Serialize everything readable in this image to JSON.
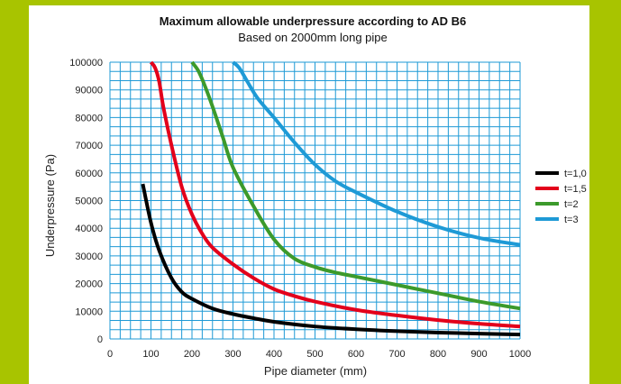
{
  "chart_data": {
    "type": "line",
    "title": "Maximum allowable underpressure according to AD B6",
    "subtitle": "Based on 2000mm long pipe",
    "xlabel": "Pipe diameter (mm)",
    "ylabel": "Underpressure (Pa)",
    "xlim": [
      0,
      1000
    ],
    "ylim": [
      0,
      100000
    ],
    "x_ticks": [
      0,
      100,
      200,
      300,
      400,
      500,
      600,
      700,
      800,
      900,
      1000
    ],
    "y_ticks": [
      0,
      10000,
      20000,
      30000,
      40000,
      50000,
      60000,
      70000,
      80000,
      90000,
      100000
    ],
    "grid": true,
    "grid_color": "#1e9ad6",
    "legend_position": "right",
    "series": [
      {
        "name": "t=1,0",
        "color": "#000000",
        "points": [
          [
            80,
            56000
          ],
          [
            100,
            42000
          ],
          [
            120,
            32000
          ],
          [
            150,
            22000
          ],
          [
            175,
            17000
          ],
          [
            200,
            14500
          ],
          [
            250,
            11000
          ],
          [
            300,
            9000
          ],
          [
            350,
            7500
          ],
          [
            400,
            6200
          ],
          [
            500,
            4500
          ],
          [
            600,
            3500
          ],
          [
            700,
            2800
          ],
          [
            800,
            2300
          ],
          [
            900,
            1900
          ],
          [
            1000,
            1600
          ]
        ]
      },
      {
        "name": "t=1,5",
        "color": "#e3001b",
        "points": [
          [
            100,
            100000
          ],
          [
            110,
            98000
          ],
          [
            120,
            93000
          ],
          [
            130,
            84000
          ],
          [
            150,
            70000
          ],
          [
            175,
            55000
          ],
          [
            200,
            45000
          ],
          [
            225,
            38000
          ],
          [
            250,
            33000
          ],
          [
            300,
            27000
          ],
          [
            350,
            22000
          ],
          [
            400,
            18000
          ],
          [
            450,
            15500
          ],
          [
            500,
            13500
          ],
          [
            600,
            10500
          ],
          [
            700,
            8500
          ],
          [
            800,
            6800
          ],
          [
            900,
            5500
          ],
          [
            1000,
            4500
          ]
        ]
      },
      {
        "name": "t=2",
        "color": "#3c9a2b",
        "points": [
          [
            200,
            100000
          ],
          [
            215,
            97000
          ],
          [
            230,
            92000
          ],
          [
            250,
            84000
          ],
          [
            275,
            73000
          ],
          [
            300,
            62000
          ],
          [
            350,
            48000
          ],
          [
            400,
            36000
          ],
          [
            450,
            29000
          ],
          [
            500,
            26000
          ],
          [
            550,
            24000
          ],
          [
            600,
            22500
          ],
          [
            700,
            19500
          ],
          [
            800,
            16500
          ],
          [
            900,
            13500
          ],
          [
            1000,
            11000
          ]
        ]
      },
      {
        "name": "t=3",
        "color": "#1e9ad6",
        "points": [
          [
            300,
            100000
          ],
          [
            315,
            98000
          ],
          [
            335,
            93000
          ],
          [
            360,
            87000
          ],
          [
            400,
            80000
          ],
          [
            450,
            71000
          ],
          [
            500,
            63000
          ],
          [
            550,
            57000
          ],
          [
            600,
            53000
          ],
          [
            700,
            46000
          ],
          [
            800,
            40500
          ],
          [
            900,
            36500
          ],
          [
            1000,
            34000
          ]
        ]
      }
    ]
  }
}
